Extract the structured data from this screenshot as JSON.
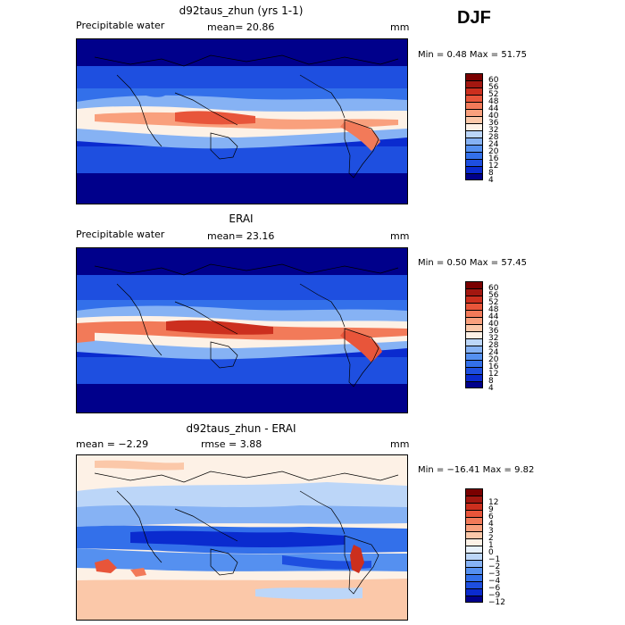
{
  "season": "DJF",
  "colors": {
    "full": [
      "#00008b",
      "#0a2bcf",
      "#1e4fe0",
      "#3370ea",
      "#5590f0",
      "#86b2f4",
      "#bcd6f8",
      "#fdf1e6",
      "#fbc8a9",
      "#f9a07d",
      "#f27a59",
      "#e8553a",
      "#cc2f1e",
      "#a31710",
      "#7a0000"
    ],
    "diff": [
      "#00008b",
      "#0a2bcf",
      "#1e4fe0",
      "#3370ea",
      "#5590f0",
      "#86b2f4",
      "#bcd6f8",
      "#e8f1fb",
      "#fdf1e6",
      "#fbc8a9",
      "#f9a07d",
      "#f27a59",
      "#e8553a",
      "#cc2f1e",
      "#a31710",
      "#7a0000"
    ]
  },
  "panels": [
    {
      "title": "d92taus_zhun (yrs 1-1)",
      "left_label": "Precipitable water",
      "center_label": "mean=  20.86",
      "unit": "mm",
      "stats": "Min =    0.48  Max =   51.75",
      "colorbar": [
        "4",
        "8",
        "12",
        "16",
        "20",
        "24",
        "28",
        "32",
        "36",
        "40",
        "44",
        "48",
        "52",
        "56",
        "60"
      ]
    },
    {
      "title": "ERAI",
      "left_label": "Precipitable water",
      "center_label": "mean=  23.16",
      "unit": "mm",
      "stats": "Min =   0.50  Max =   57.45",
      "colorbar": [
        "4",
        "8",
        "12",
        "16",
        "20",
        "24",
        "28",
        "32",
        "36",
        "40",
        "44",
        "48",
        "52",
        "56",
        "60"
      ]
    },
    {
      "title": "d92taus_zhun - ERAI",
      "left_label": "mean =   −2.29",
      "center_label": "rmse =    3.88",
      "unit": "mm",
      "stats": "Min = −16.41  Max =    9.82",
      "colorbar": [
        "−12",
        "−9",
        "−6",
        "−4",
        "−3",
        "−2",
        "−1",
        "0",
        "1",
        "2",
        "3",
        "4",
        "6",
        "9",
        "12"
      ]
    }
  ]
}
